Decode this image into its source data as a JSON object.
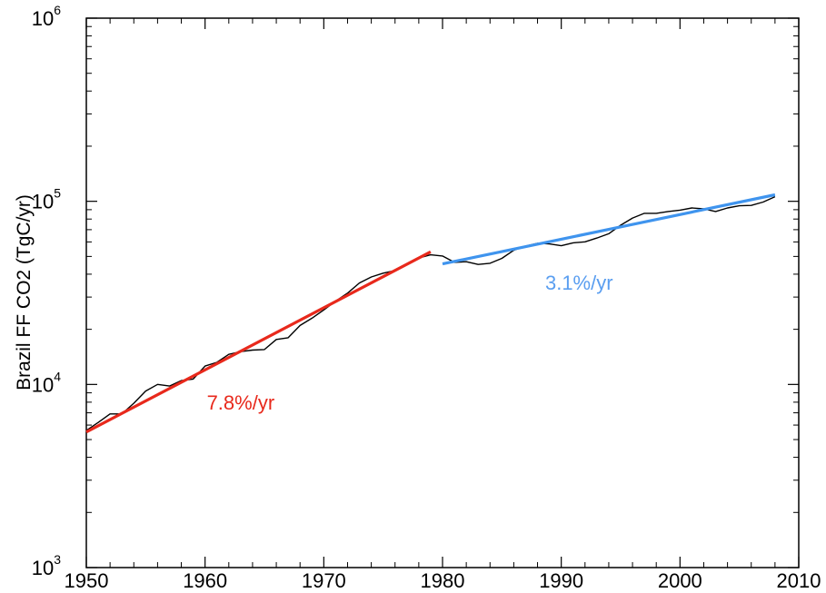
{
  "chart_data": {
    "type": "line",
    "title": "",
    "xlabel": "",
    "ylabel": "Brazil FF CO2 (TgC/yr)",
    "xlim": [
      1950,
      2010
    ],
    "ylim": [
      1000,
      1000000
    ],
    "yscale": "log",
    "grid": false,
    "x_ticks": [
      "1950",
      "1960",
      "1970",
      "1980",
      "1990",
      "2000",
      "2010"
    ],
    "y_ticks": [
      {
        "value": 1000,
        "base": "10",
        "exp": "3"
      },
      {
        "value": 10000,
        "base": "10",
        "exp": "4"
      },
      {
        "value": 100000,
        "base": "10",
        "exp": "5"
      },
      {
        "value": 1000000,
        "base": "10",
        "exp": "6"
      }
    ],
    "series": [
      {
        "color": "#000000",
        "x": [
          1950,
          1951,
          1952,
          1953,
          1954,
          1955,
          1956,
          1957,
          1958,
          1959,
          1960,
          1961,
          1962,
          1963,
          1964,
          1965,
          1966,
          1967,
          1968,
          1969,
          1970,
          1971,
          1972,
          1973,
          1974,
          1975,
          1976,
          1977,
          1978,
          1979,
          1980,
          1981,
          1982,
          1983,
          1984,
          1985,
          1986,
          1987,
          1988,
          1989,
          1990,
          1991,
          1992,
          1993,
          1994,
          1995,
          1996,
          1997,
          1998,
          1999,
          2000,
          2001,
          2002,
          2003,
          2004,
          2005,
          2006,
          2007,
          2008
        ],
        "y": [
          5600,
          6200,
          6900,
          6900,
          7900,
          9200,
          10000,
          9800,
          10500,
          10700,
          12600,
          13200,
          14600,
          15100,
          15400,
          15500,
          17600,
          18000,
          21000,
          23000,
          25500,
          28500,
          31500,
          35800,
          38600,
          40500,
          41900,
          45000,
          49000,
          51000,
          50300,
          46400,
          46800,
          45200,
          45900,
          48800,
          54000,
          57000,
          59000,
          58500,
          57200,
          59300,
          60100,
          63000,
          66500,
          74000,
          81000,
          86000,
          86000,
          88000,
          89500,
          92000,
          91000,
          88000,
          92000,
          94500,
          95000,
          99000,
          106000
        ]
      },
      {
        "name": "7.8%/yr",
        "color": "#e8291c",
        "x": [
          1950,
          1979
        ],
        "y": [
          5500,
          53000
        ]
      },
      {
        "name": "3.1%/yr",
        "color": "#3f94ee",
        "x": [
          1980,
          2008
        ],
        "y": [
          45500,
          108500
        ]
      }
    ],
    "annotations": [
      {
        "text": "7.8%/yr",
        "x": 1963,
        "y": 7300,
        "color": "#e8291c"
      },
      {
        "text": "3.1%/yr",
        "x": 1991.5,
        "y": 33000,
        "color": "#5a9ef0"
      }
    ]
  }
}
